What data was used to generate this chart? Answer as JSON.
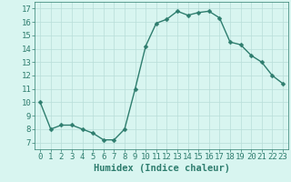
{
  "x": [
    0,
    1,
    2,
    3,
    4,
    5,
    6,
    7,
    8,
    9,
    10,
    11,
    12,
    13,
    14,
    15,
    16,
    17,
    18,
    19,
    20,
    21,
    22,
    23
  ],
  "y": [
    10,
    8,
    8.3,
    8.3,
    8,
    7.7,
    7.2,
    7.2,
    8,
    11,
    14.2,
    15.9,
    16.2,
    16.8,
    16.5,
    16.7,
    16.8,
    16.3,
    14.5,
    14.3,
    13.5,
    13.0,
    12.0,
    11.4
  ],
  "line_color": "#2e7d6e",
  "marker_color": "#2e7d6e",
  "bg_color": "#d8f5f0",
  "grid_color": "#b8ddd8",
  "xlabel": "Humidex (Indice chaleur)",
  "xlim": [
    -0.5,
    23.5
  ],
  "ylim": [
    6.5,
    17.5
  ],
  "yticks": [
    7,
    8,
    9,
    10,
    11,
    12,
    13,
    14,
    15,
    16,
    17
  ],
  "xticks": [
    0,
    1,
    2,
    3,
    4,
    5,
    6,
    7,
    8,
    9,
    10,
    11,
    12,
    13,
    14,
    15,
    16,
    17,
    18,
    19,
    20,
    21,
    22,
    23
  ],
  "tick_color": "#2e7d6e",
  "label_color": "#2e7d6e",
  "font_size": 6.5,
  "xlabel_fontsize": 7.5,
  "marker_size": 2.5,
  "line_width": 1.0
}
